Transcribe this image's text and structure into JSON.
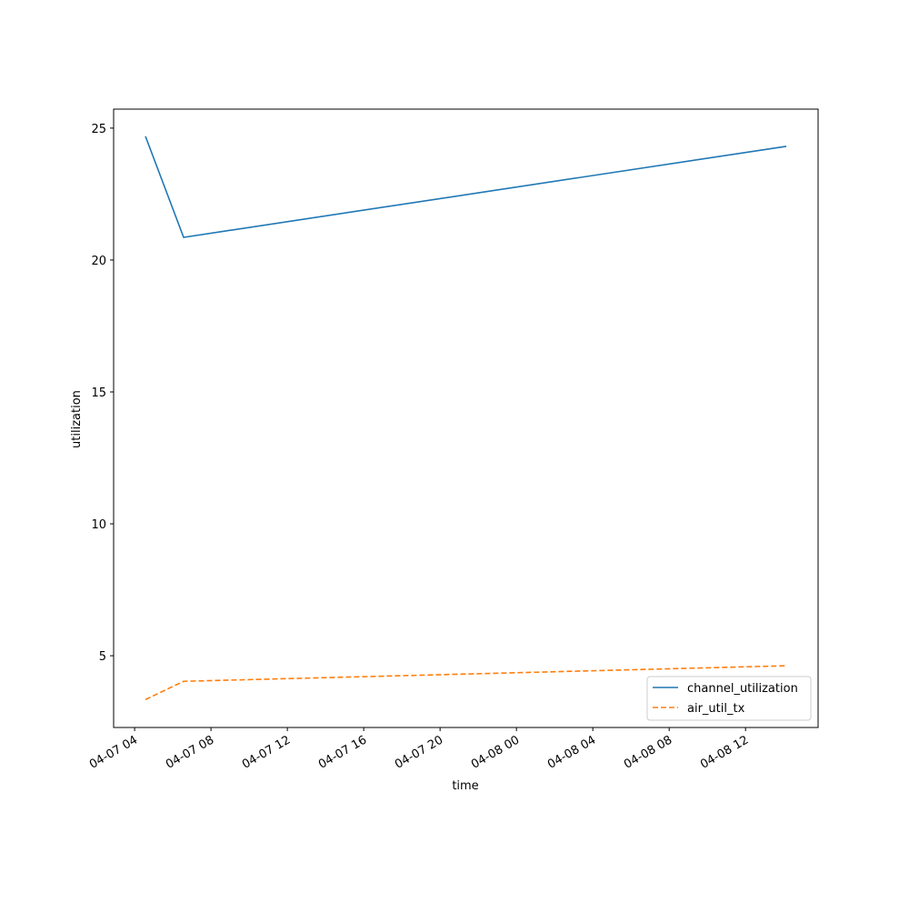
{
  "chart_data": {
    "type": "line",
    "xlabel": "time",
    "ylabel": "utilization",
    "x": [
      "04-07 04:34",
      "04-07 06:34",
      "04-08 14:08"
    ],
    "series": [
      {
        "name": "channel_utilization",
        "color": "#1f77b4",
        "dash": "solid",
        "values": [
          24.69,
          20.86,
          24.31
        ]
      },
      {
        "name": "air_util_tx",
        "color": "#ff7f0e",
        "dash": "dashed",
        "values": [
          3.34,
          4.03,
          4.62
        ]
      }
    ],
    "xlim": [
      "04-07 02:54",
      "04-08 15:48"
    ],
    "xticks": [
      "04-07 04",
      "04-07 08",
      "04-07 12",
      "04-07 16",
      "04-07 20",
      "04-08 00",
      "04-08 04",
      "04-08 08",
      "04-08 12"
    ],
    "ylim": [
      2.28,
      25.72
    ],
    "yticks": [
      5,
      10,
      15,
      20,
      25
    ],
    "legend": "lower right"
  }
}
